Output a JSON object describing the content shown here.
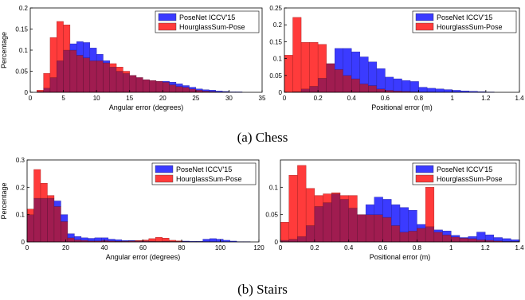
{
  "captions": [
    "(a) Chess",
    "(b) Stairs"
  ],
  "colors": {
    "posenet": "#3b3bff",
    "hourglass": "#ff3b3b",
    "overlap": "#a01c50"
  },
  "chart_data": [
    {
      "type": "bar",
      "xlabel": "Angular error (degrees)",
      "ylabel": "Percentage",
      "xlim": [
        0,
        35
      ],
      "ylim": [
        0,
        0.2
      ],
      "xticks": [
        0,
        5,
        10,
        15,
        20,
        25,
        30,
        35
      ],
      "yticks": [
        0,
        0.05,
        0.1,
        0.15,
        0.2
      ],
      "bin_width": 1,
      "bin_start": 1,
      "legend_position": "top-right",
      "series": [
        {
          "name": "PoseNet ICCV'15",
          "values": [
            0.002,
            0.01,
            0.035,
            0.075,
            0.1,
            0.115,
            0.12,
            0.118,
            0.105,
            0.09,
            0.075,
            0.06,
            0.05,
            0.045,
            0.04,
            0.035,
            0.03,
            0.028,
            0.026,
            0.026,
            0.024,
            0.02,
            0.016,
            0.012,
            0.008,
            0.006,
            0.005,
            0.003,
            0.002,
            0.001,
            0.001
          ]
        },
        {
          "name": "HourglassSum-Pose",
          "values": [
            0.005,
            0.045,
            0.13,
            0.168,
            0.16,
            0.1,
            0.088,
            0.082,
            0.075,
            0.075,
            0.07,
            0.068,
            0.06,
            0.05,
            0.04,
            0.035,
            0.03,
            0.028,
            0.026,
            0.024,
            0.018,
            0.014,
            0.012,
            0.008,
            0.005,
            0.003,
            0.002,
            0.001,
            0.001,
            0,
            0
          ]
        }
      ]
    },
    {
      "type": "bar",
      "xlabel": "Positional error (m)",
      "ylabel": "",
      "xlim": [
        0,
        1.4
      ],
      "ylim": [
        0,
        0.25
      ],
      "xticks": [
        0,
        0.2,
        0.4,
        0.6,
        0.8,
        1,
        1.2,
        1.4
      ],
      "yticks": [
        0,
        0.05,
        0.1,
        0.15,
        0.2,
        0.25
      ],
      "bin_width": 0.05,
      "bin_start": 0,
      "legend_position": "top-right",
      "series": [
        {
          "name": "PoseNet ICCV'15",
          "values": [
            0,
            0.002,
            0.01,
            0.018,
            0.042,
            0.085,
            0.13,
            0.13,
            0.12,
            0.105,
            0.09,
            0.07,
            0.045,
            0.04,
            0.035,
            0.032,
            0.015,
            0.012,
            0.01,
            0.008,
            0.006,
            0.004,
            0.003,
            0.002,
            0.001
          ]
        },
        {
          "name": "HourglassSum-Pose",
          "values": [
            0.11,
            0.222,
            0.148,
            0.148,
            0.142,
            0.085,
            0.068,
            0.05,
            0.04,
            0.025,
            0.02,
            0.01,
            0.006,
            0.004,
            0.003,
            0.002,
            0.001,
            0.001,
            0,
            0,
            0,
            0,
            0,
            0,
            0
          ]
        }
      ]
    },
    {
      "type": "bar",
      "xlabel": "Angular error (degrees)",
      "ylabel": "Percentage",
      "xlim": [
        0,
        120
      ],
      "ylim": [
        0,
        0.3
      ],
      "xticks": [
        0,
        20,
        40,
        60,
        80,
        100,
        120
      ],
      "yticks": [
        0,
        0.1,
        0.2,
        0.3
      ],
      "bin_width": 3.5,
      "bin_start": 0,
      "legend_position": "top-right",
      "series": [
        {
          "name": "PoseNet ICCV'15",
          "values": [
            0.1,
            0.16,
            0.16,
            0.16,
            0.15,
            0.1,
            0.03,
            0.02,
            0.015,
            0.013,
            0.015,
            0.015,
            0.01,
            0.008,
            0.005,
            0.005,
            0.004,
            0.004,
            0.003,
            0.002,
            0.003,
            0.002,
            0.002,
            0.003,
            0.002,
            0.002,
            0.01,
            0.012,
            0.01,
            0.006,
            0.003,
            0.001,
            0.001
          ]
        },
        {
          "name": "HourglassSum-Pose",
          "values": [
            0.12,
            0.265,
            0.215,
            0.17,
            0.13,
            0.075,
            0.015,
            0.008,
            0.006,
            0.004,
            0.004,
            0.005,
            0.004,
            0.003,
            0.003,
            0.004,
            0.005,
            0.007,
            0.012,
            0.017,
            0.014,
            0.006,
            0.004,
            0.002,
            0.001,
            0.001,
            0.001,
            0.001,
            0,
            0,
            0,
            0,
            0
          ]
        }
      ]
    },
    {
      "type": "bar",
      "xlabel": "Positional error (m)",
      "ylabel": "",
      "xlim": [
        0,
        1.4
      ],
      "ylim": [
        0,
        0.15
      ],
      "xticks": [
        0,
        0.2,
        0.4,
        0.6,
        0.8,
        1,
        1.2,
        1.4
      ],
      "yticks": [
        0,
        0.05,
        0.1
      ],
      "bin_width": 0.05,
      "bin_start": 0,
      "legend_position": "top-right",
      "series": [
        {
          "name": "PoseNet ICCV'15",
          "values": [
            0.003,
            0.005,
            0.01,
            0.03,
            0.065,
            0.072,
            0.088,
            0.078,
            0.062,
            0.05,
            0.068,
            0.082,
            0.078,
            0.068,
            0.063,
            0.058,
            0.032,
            0.028,
            0.022,
            0.02,
            0.012,
            0.008,
            0.01,
            0.018,
            0.013,
            0.008,
            0.006,
            0.004
          ]
        },
        {
          "name": "HourglassSum-Pose",
          "values": [
            0.036,
            0.122,
            0.14,
            0.098,
            0.085,
            0.088,
            0.09,
            0.085,
            0.085,
            0.05,
            0.05,
            0.05,
            0.045,
            0.03,
            0.018,
            0.02,
            0.025,
            0.1,
            0.018,
            0.013,
            0.009,
            0.007,
            0.006,
            0.004,
            0.003,
            0.002,
            0.001,
            0.001
          ]
        }
      ]
    }
  ]
}
